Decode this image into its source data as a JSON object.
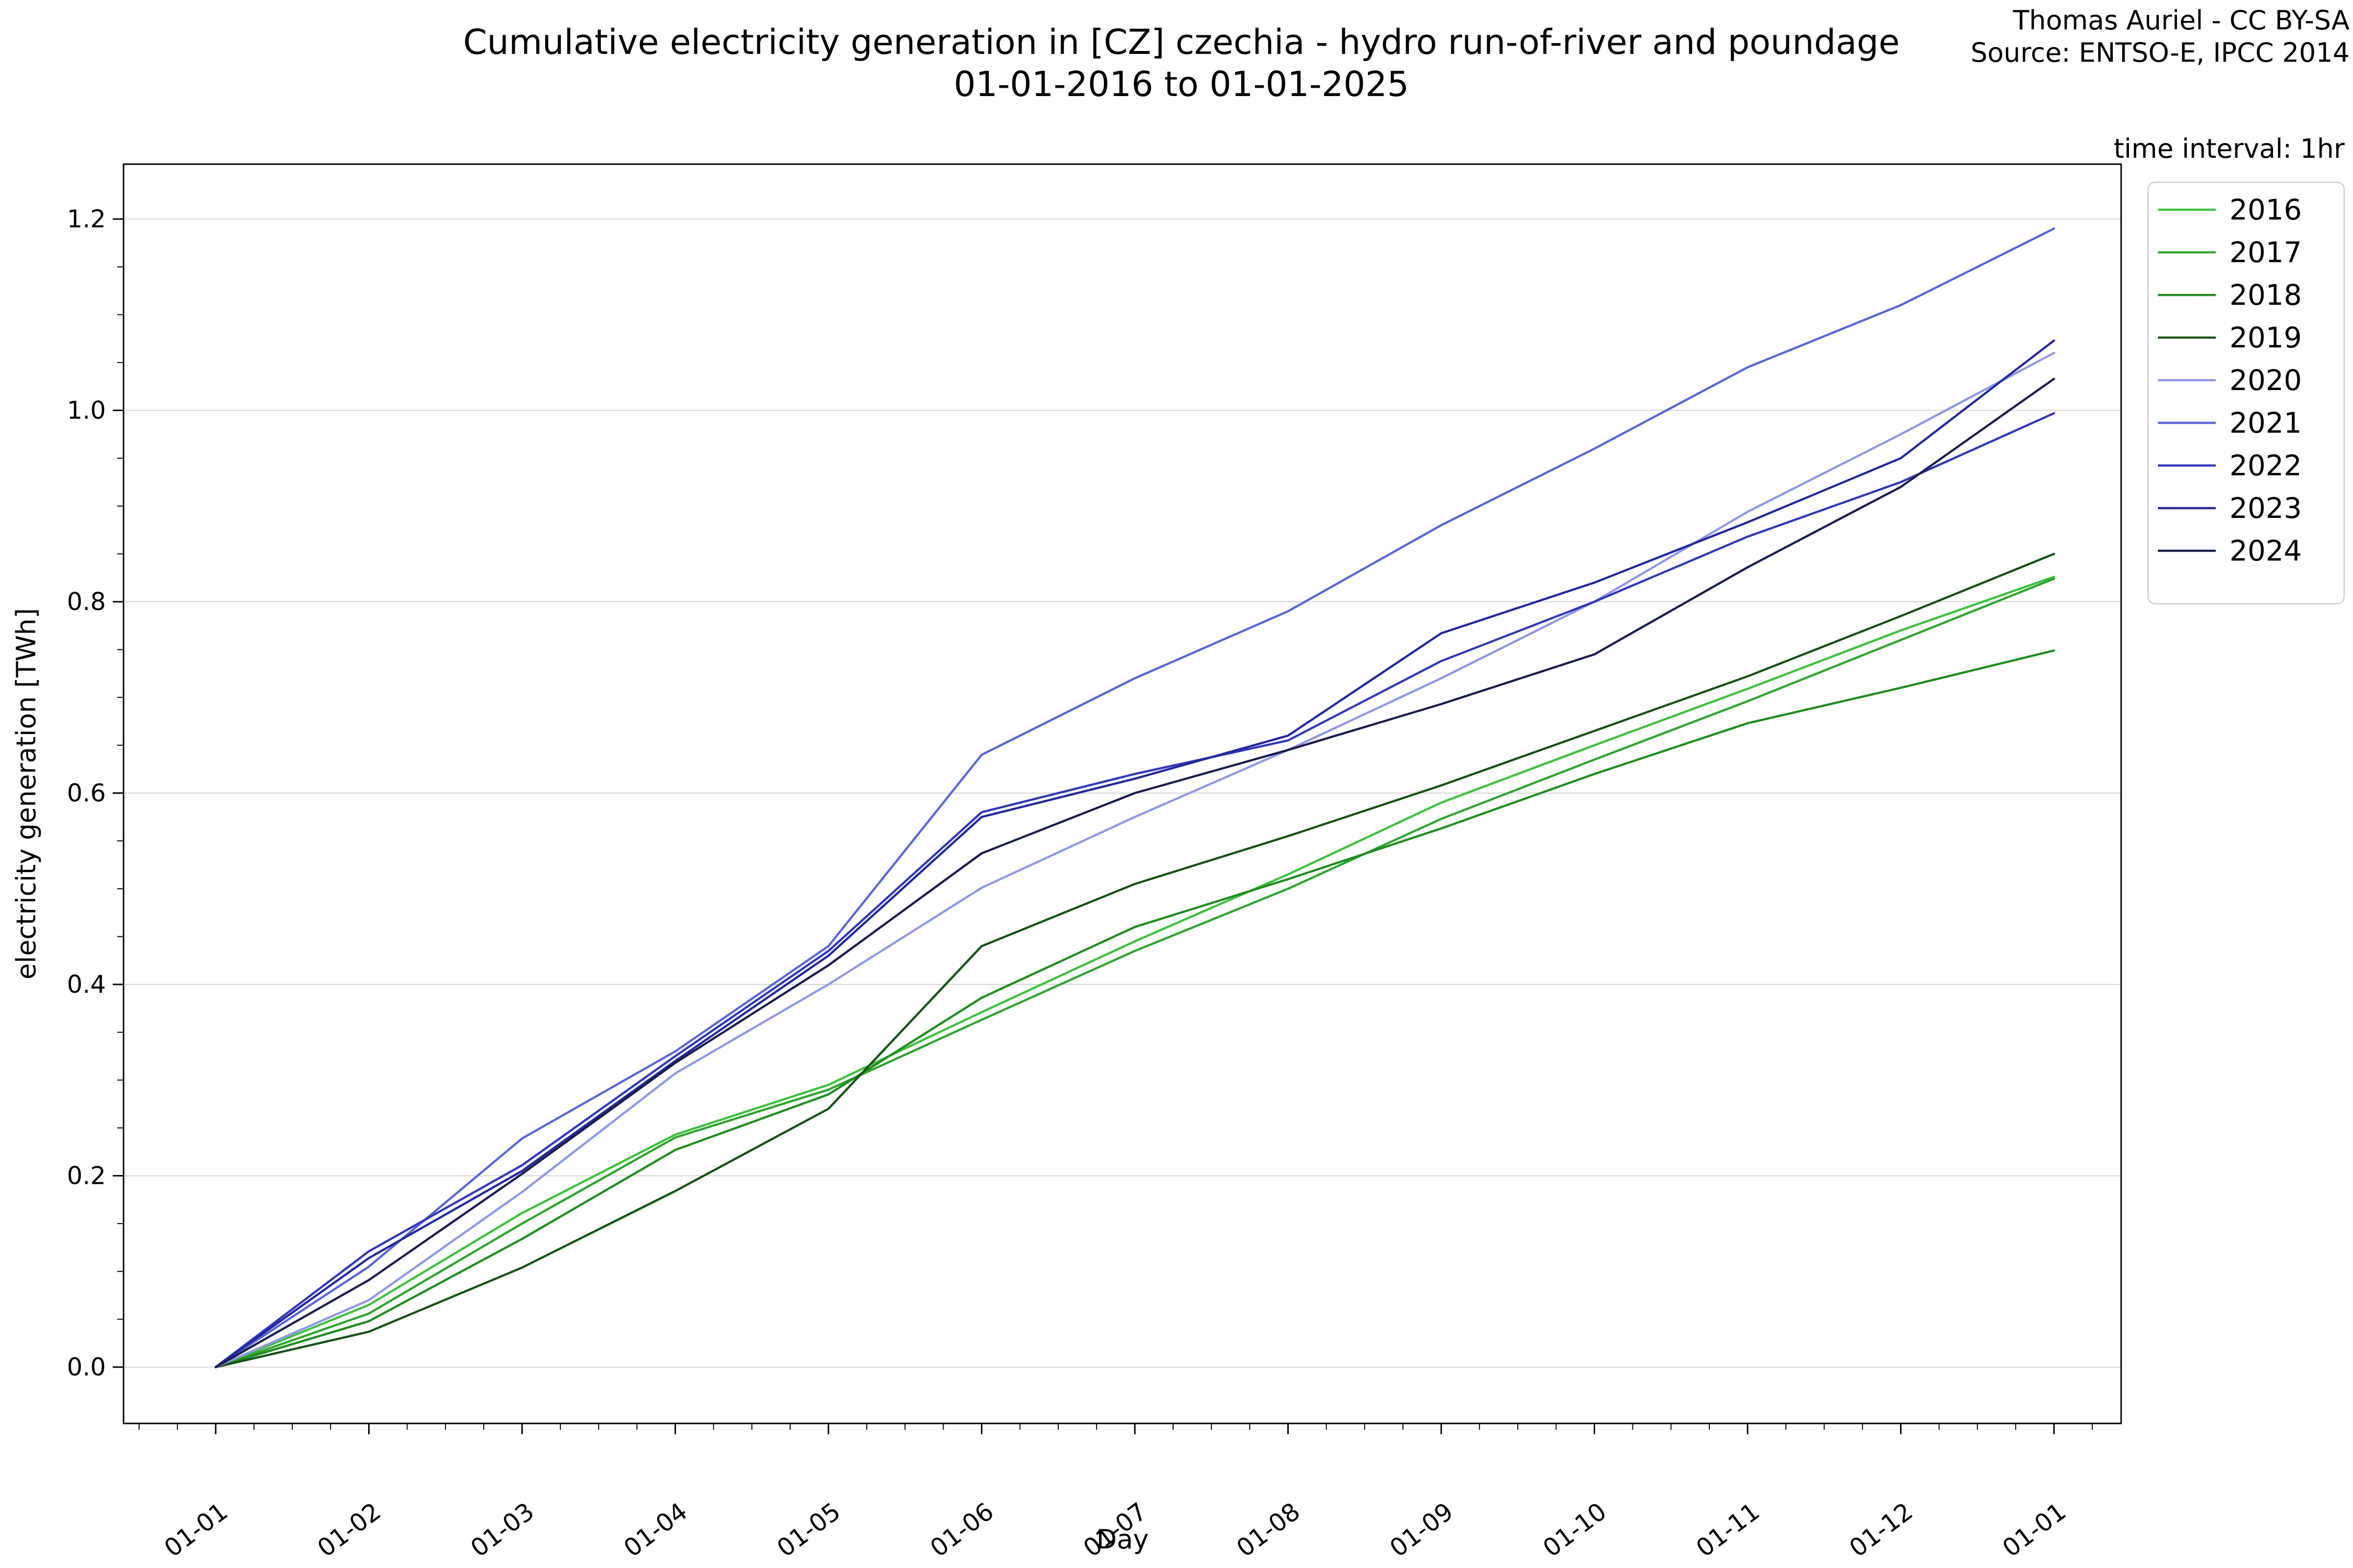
{
  "header": {
    "title_line1": "Cumulative electricity generation in [CZ] czechia - hydro run-of-river and poundage",
    "title_line2": "01-01-2016 to 01-01-2025",
    "attribution_line1": "Thomas Auriel - CC BY-SA",
    "attribution_line2": "Source: ENTSO-E, IPCC 2014",
    "time_interval_note": "time interval: 1hr"
  },
  "chart_data": {
    "type": "line",
    "title": "Cumulative electricity generation in [CZ] czechia - hydro run-of-river and poundage 01-01-2016 to 01-01-2025",
    "xlabel": "Day",
    "ylabel": "electricity generation [TWh]",
    "x_tick_labels": [
      "01-01",
      "01-02",
      "01-03",
      "01-04",
      "01-05",
      "01-06",
      "01-07",
      "01-08",
      "01-09",
      "01-10",
      "01-11",
      "01-12",
      "01-01"
    ],
    "y_ticks": [
      0.0,
      0.2,
      0.4,
      0.6,
      0.8,
      1.0,
      1.2
    ],
    "ylim": [
      -0.06,
      1.26
    ],
    "grid": "horizontal",
    "legend_position": "outside-upper-right",
    "series": [
      {
        "name": "2016",
        "color": "#3dc03d",
        "values": [
          0,
          0.065,
          0.161,
          0.243,
          0.295,
          0.371,
          0.445,
          0.515,
          0.59,
          0.65,
          0.709,
          0.77,
          0.826
        ]
      },
      {
        "name": "2017",
        "color": "#2da42d",
        "values": [
          0,
          0.056,
          0.15,
          0.24,
          0.29,
          0.363,
          0.435,
          0.5,
          0.573,
          0.635,
          0.696,
          0.76,
          0.824
        ]
      },
      {
        "name": "2018",
        "color": "#1f8c1f",
        "values": [
          0,
          0.048,
          0.134,
          0.227,
          0.285,
          0.386,
          0.46,
          0.51,
          0.563,
          0.62,
          0.673,
          0.71,
          0.749
        ]
      },
      {
        "name": "2019",
        "color": "#155215",
        "values": [
          0,
          0.037,
          0.104,
          0.184,
          0.27,
          0.44,
          0.505,
          0.555,
          0.608,
          0.665,
          0.722,
          0.785,
          0.85
        ]
      },
      {
        "name": "2020",
        "color": "#8e98e4",
        "values": [
          0,
          0.07,
          0.183,
          0.307,
          0.4,
          0.501,
          0.575,
          0.645,
          0.72,
          0.8,
          0.894,
          0.975,
          1.06
        ]
      },
      {
        "name": "2021",
        "color": "#5865d6",
        "values": [
          0,
          0.105,
          0.239,
          0.33,
          0.44,
          0.64,
          0.72,
          0.79,
          0.88,
          0.96,
          1.045,
          1.11,
          1.19
        ]
      },
      {
        "name": "2022",
        "color": "#3138b6",
        "values": [
          0,
          0.121,
          0.211,
          0.325,
          0.435,
          0.58,
          0.62,
          0.655,
          0.738,
          0.8,
          0.868,
          0.925,
          0.997
        ]
      },
      {
        "name": "2023",
        "color": "#23289c",
        "values": [
          0,
          0.114,
          0.205,
          0.32,
          0.43,
          0.575,
          0.615,
          0.66,
          0.767,
          0.82,
          0.883,
          0.95,
          1.073
        ]
      },
      {
        "name": "2024",
        "color": "#191c4d",
        "values": [
          0,
          0.091,
          0.202,
          0.318,
          0.42,
          0.537,
          0.6,
          0.645,
          0.693,
          0.745,
          0.836,
          0.92,
          1.033
        ]
      }
    ]
  }
}
